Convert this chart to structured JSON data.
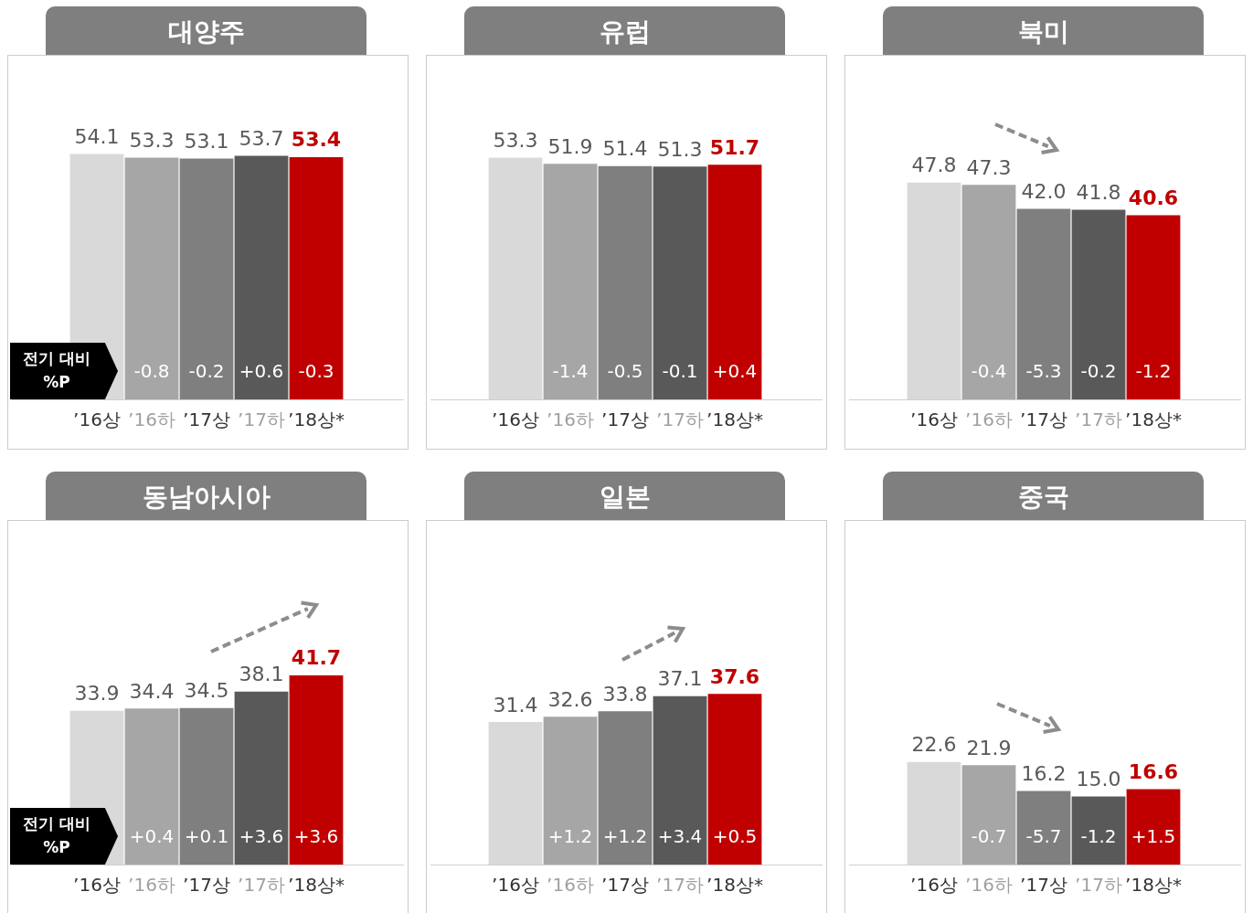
{
  "chart_data": [
    {
      "type": "bar",
      "title": "대양주",
      "categories": [
        "’16상",
        "’16하",
        "’17상",
        "’17하",
        "’18상*"
      ],
      "values": [
        54.1,
        53.3,
        53.1,
        53.7,
        53.4
      ],
      "colors": [
        "#d9d9d9",
        "#a6a6a6",
        "#7f7f7f",
        "#595959",
        "#c00000"
      ],
      "data_labels": true,
      "annotations": [
        "전기 대비 %P",
        "-0.8",
        "-0.2",
        "+0.6",
        "-0.3"
      ]
    },
    {
      "type": "bar",
      "title": "유럽",
      "categories": [
        "’16상",
        "’16하",
        "’17상",
        "’17하",
        "’18상*"
      ],
      "values": [
        53.3,
        51.9,
        51.4,
        51.3,
        51.7
      ],
      "colors": [
        "#d9d9d9",
        "#a6a6a6",
        "#7f7f7f",
        "#595959",
        "#c00000"
      ],
      "data_labels": true,
      "annotations": [
        "-1.4",
        "-0.5",
        "-0.1",
        "+0.4"
      ]
    },
    {
      "type": "bar",
      "title": "북미",
      "categories": [
        "’16상",
        "’16하",
        "’17상",
        "’17하",
        "’18상*"
      ],
      "values": [
        47.8,
        47.3,
        42.0,
        41.8,
        40.6
      ],
      "value_labels": [
        "47.8",
        "47.3",
        "42.0",
        "41.8",
        "40.6"
      ],
      "colors": [
        "#d9d9d9",
        "#a6a6a6",
        "#7f7f7f",
        "#595959",
        "#c00000"
      ],
      "annotations": [
        "-0.4",
        "-5.3",
        "-0.2",
        "-1.2"
      ]
    },
    {
      "type": "bar",
      "title": "동남아시아",
      "categories": [
        "’16상",
        "’16하",
        "’17상",
        "’17하",
        "’18상*"
      ],
      "values": [
        33.9,
        34.4,
        34.5,
        38.1,
        41.7
      ],
      "colors": [
        "#d9d9d9",
        "#a6a6a6",
        "#7f7f7f",
        "#595959",
        "#c00000"
      ],
      "data_labels": true,
      "annotations": [
        "전기 대비 %P",
        "+0.4",
        "+0.1",
        "+3.6",
        "+3.6"
      ]
    },
    {
      "type": "bar",
      "title": "일본",
      "categories": [
        "’16상",
        "’16하",
        "’17상",
        "’17하",
        "’18상*"
      ],
      "values": [
        31.4,
        32.6,
        33.8,
        37.1,
        37.6
      ],
      "colors": [
        "#d9d9d9",
        "#a6a6a6",
        "#7f7f7f",
        "#595959",
        "#c00000"
      ],
      "data_labels": true,
      "annotations": [
        "+1.2",
        "+1.2",
        "+3.4",
        "+0.5"
      ]
    },
    {
      "type": "bar",
      "title": "중국",
      "categories": [
        "’16상",
        "’16하",
        "’17상",
        "’17하",
        "’18상*"
      ],
      "values": [
        22.6,
        21.9,
        16.2,
        15.0,
        16.6
      ],
      "value_labels": [
        "22.6",
        "21.9",
        "16.2",
        "15.0",
        "16.6"
      ],
      "colors": [
        "#d9d9d9",
        "#a6a6a6",
        "#7f7f7f",
        "#595959",
        "#c00000"
      ],
      "annotations": [
        "-0.7",
        "-5.7",
        "-1.2",
        "+1.5"
      ]
    }
  ]
}
